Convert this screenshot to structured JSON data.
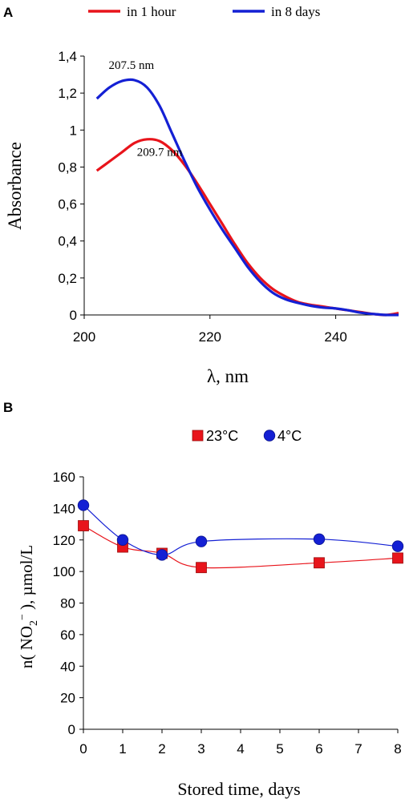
{
  "chart_data": [
    {
      "panel": "A",
      "type": "line",
      "xlabel": "λ, nm",
      "ylabel": "Absorbance",
      "xlim": [
        200,
        250
      ],
      "ylim": [
        0,
        1.4
      ],
      "xticks": [
        "200",
        "220",
        "240"
      ],
      "yticks": [
        "0",
        "0,2",
        "0,4",
        "0,6",
        "0,8",
        "1",
        "1,2",
        "1,4"
      ],
      "legend": "top",
      "grid": false,
      "series": [
        {
          "name": "in 1 hour",
          "color": "#e8141b",
          "x": [
            202,
            204,
            206,
            208,
            210,
            212,
            214,
            216,
            218,
            220,
            222,
            224,
            226,
            228,
            230,
            232,
            234,
            236,
            238,
            240,
            242,
            244,
            246,
            248,
            250
          ],
          "y": [
            0.78,
            0.83,
            0.88,
            0.93,
            0.95,
            0.94,
            0.89,
            0.81,
            0.71,
            0.6,
            0.49,
            0.38,
            0.28,
            0.2,
            0.14,
            0.1,
            0.07,
            0.055,
            0.045,
            0.035,
            0.025,
            0.015,
            0.005,
            0.0,
            0.01
          ]
        },
        {
          "name": "in 8 days",
          "color": "#1420d4",
          "x": [
            202,
            204,
            206,
            208,
            210,
            212,
            214,
            216,
            218,
            220,
            222,
            224,
            226,
            228,
            230,
            232,
            234,
            236,
            238,
            240,
            242,
            244,
            246,
            248,
            250
          ],
          "y": [
            1.17,
            1.23,
            1.265,
            1.27,
            1.23,
            1.13,
            0.98,
            0.83,
            0.69,
            0.57,
            0.46,
            0.36,
            0.26,
            0.18,
            0.12,
            0.085,
            0.065,
            0.05,
            0.04,
            0.035,
            0.025,
            0.012,
            0.005,
            0.0,
            0.0
          ]
        }
      ],
      "annotations": [
        {
          "text": "207.5 nm",
          "x": 207.5,
          "y": 1.33
        },
        {
          "text": "209.7 nm",
          "x": 212,
          "y": 0.86
        }
      ]
    },
    {
      "panel": "B",
      "type": "scatter",
      "xlabel": "Stored time, days",
      "ylabel": "n( NO₂⁻ ), µmol/L",
      "xlim": [
        0,
        8
      ],
      "ylim": [
        0,
        160
      ],
      "xticks": [
        "0",
        "1",
        "2",
        "3",
        "4",
        "5",
        "6",
        "7",
        "8"
      ],
      "yticks": [
        "0",
        "20",
        "40",
        "60",
        "80",
        "100",
        "120",
        "140",
        "160"
      ],
      "legend": "top",
      "grid": false,
      "series": [
        {
          "name": "23°C",
          "color": "#e8141b",
          "marker": "square",
          "x": [
            0,
            1,
            2,
            3,
            6,
            8
          ],
          "y": [
            129,
            115.5,
            111.5,
            102.5,
            105.5,
            108.5
          ]
        },
        {
          "name": "4°C",
          "color": "#1420d4",
          "marker": "circle",
          "x": [
            0,
            1,
            2,
            3,
            6,
            8
          ],
          "y": [
            142,
            120,
            110.5,
            119,
            120.5,
            116
          ]
        }
      ]
    }
  ]
}
